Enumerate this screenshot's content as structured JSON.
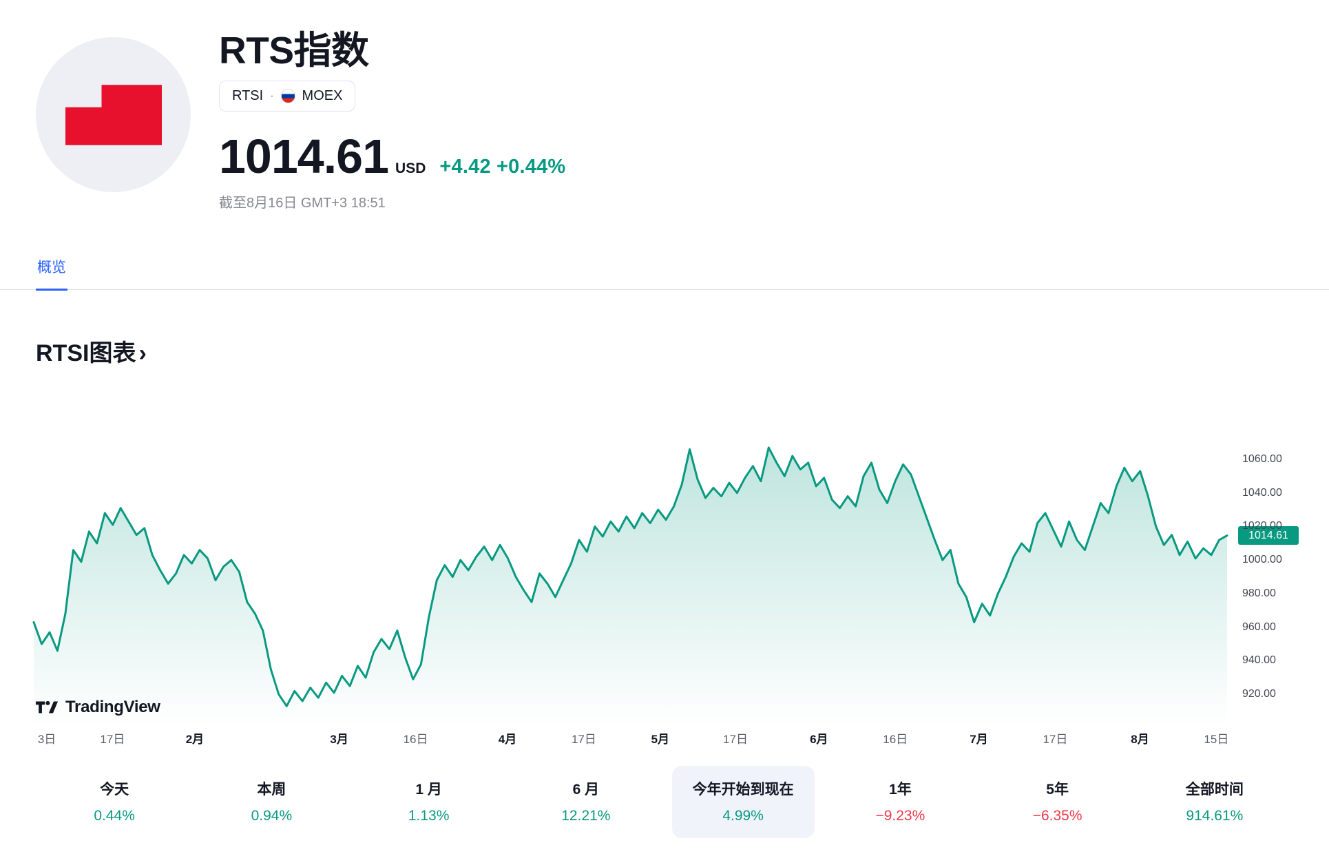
{
  "header": {
    "title": "RTS指数",
    "symbol": "RTSI",
    "separator": "·",
    "exchange": "MOEX",
    "price": "1014.61",
    "currency": "USD",
    "change_abs": "+4.42",
    "change_pct": "+0.44%",
    "timestamp": "截至8月16日 GMT+3 18:51"
  },
  "tabs": [
    {
      "label": "概览",
      "active": true
    }
  ],
  "section": {
    "title": "RTSI图表",
    "chevron": "›"
  },
  "attribution": {
    "text": "TradingView"
  },
  "chart_data": {
    "type": "area",
    "title": "RTSI图表",
    "xlabel": "",
    "ylabel": "",
    "grid": false,
    "legend": false,
    "current": 1014.61,
    "current_label": "1014.61",
    "ylim": [
      900,
      1072.3
    ],
    "y_ticks": [
      1060,
      1040,
      1020,
      1000,
      980,
      960,
      940,
      920
    ],
    "x_labels": [
      {
        "label": "3日",
        "pos": 0.011,
        "bold": false
      },
      {
        "label": "17日",
        "pos": 0.066,
        "bold": false
      },
      {
        "label": "2月",
        "pos": 0.135,
        "bold": true
      },
      {
        "label": "3月",
        "pos": 0.256,
        "bold": true
      },
      {
        "label": "16日",
        "pos": 0.32,
        "bold": false
      },
      {
        "label": "4月",
        "pos": 0.397,
        "bold": true
      },
      {
        "label": "17日",
        "pos": 0.461,
        "bold": false
      },
      {
        "label": "5月",
        "pos": 0.525,
        "bold": true
      },
      {
        "label": "17日",
        "pos": 0.588,
        "bold": false
      },
      {
        "label": "6月",
        "pos": 0.658,
        "bold": true
      },
      {
        "label": "16日",
        "pos": 0.722,
        "bold": false
      },
      {
        "label": "7月",
        "pos": 0.792,
        "bold": true
      },
      {
        "label": "17日",
        "pos": 0.856,
        "bold": false
      },
      {
        "label": "8月",
        "pos": 0.927,
        "bold": true
      },
      {
        "label": "15日",
        "pos": 0.991,
        "bold": false
      }
    ],
    "values": [
      963,
      950,
      957,
      946,
      968,
      1006,
      999,
      1017,
      1010,
      1028,
      1021,
      1031,
      1023,
      1015,
      1019,
      1003,
      994,
      986,
      992,
      1003,
      998,
      1006,
      1001,
      988,
      996,
      1000,
      993,
      975,
      968,
      958,
      935,
      920,
      913,
      922,
      916,
      924,
      918,
      927,
      921,
      931,
      925,
      937,
      930,
      945,
      953,
      947,
      958,
      942,
      929,
      938,
      966,
      988,
      997,
      990,
      1000,
      994,
      1002,
      1008,
      1000,
      1009,
      1001,
      990,
      982,
      975,
      992,
      986,
      978,
      988,
      998,
      1012,
      1005,
      1020,
      1014,
      1023,
      1017,
      1026,
      1019,
      1028,
      1022,
      1030,
      1024,
      1032,
      1045,
      1066,
      1048,
      1037,
      1043,
      1038,
      1046,
      1040,
      1049,
      1056,
      1047,
      1067,
      1058,
      1050,
      1062,
      1054,
      1058,
      1044,
      1049,
      1036,
      1031,
      1038,
      1032,
      1050,
      1058,
      1042,
      1034,
      1047,
      1057,
      1051,
      1038,
      1025,
      1012,
      1000,
      1006,
      986,
      978,
      963,
      974,
      967,
      980,
      990,
      1002,
      1010,
      1005,
      1022,
      1028,
      1018,
      1008,
      1023,
      1012,
      1006,
      1020,
      1034,
      1028,
      1044,
      1055,
      1047,
      1053,
      1038,
      1020,
      1009,
      1015,
      1003,
      1011,
      1001,
      1007,
      1003,
      1012,
      1014.61
    ],
    "line_color": "#089981",
    "fill_top": "rgba(8,153,129,0.26)",
    "fill_bottom": "rgba(8,153,129,0)"
  },
  "periods": [
    {
      "label": "今天",
      "value": "0.44%",
      "dir": "up",
      "selected": false
    },
    {
      "label": "本周",
      "value": "0.94%",
      "dir": "up",
      "selected": false
    },
    {
      "label": "1 月",
      "value": "1.13%",
      "dir": "up",
      "selected": false
    },
    {
      "label": "6 月",
      "value": "12.21%",
      "dir": "up",
      "selected": false
    },
    {
      "label": "今年开始到现在",
      "value": "4.99%",
      "dir": "up",
      "selected": true
    },
    {
      "label": "1年",
      "value": "−9.23%",
      "dir": "down",
      "selected": false
    },
    {
      "label": "5年",
      "value": "−6.35%",
      "dir": "down",
      "selected": false
    },
    {
      "label": "全部时间",
      "value": "914.61%",
      "dir": "up",
      "selected": false
    }
  ],
  "colors": {
    "accent_green": "#089981",
    "accent_red": "#f23645",
    "tab_blue": "#2962ff",
    "logo_red": "#e8112d",
    "logo_circle_bg": "#edeff5",
    "border": "#e0e3eb",
    "text_primary": "#131722",
    "text_muted": "#87898f"
  }
}
